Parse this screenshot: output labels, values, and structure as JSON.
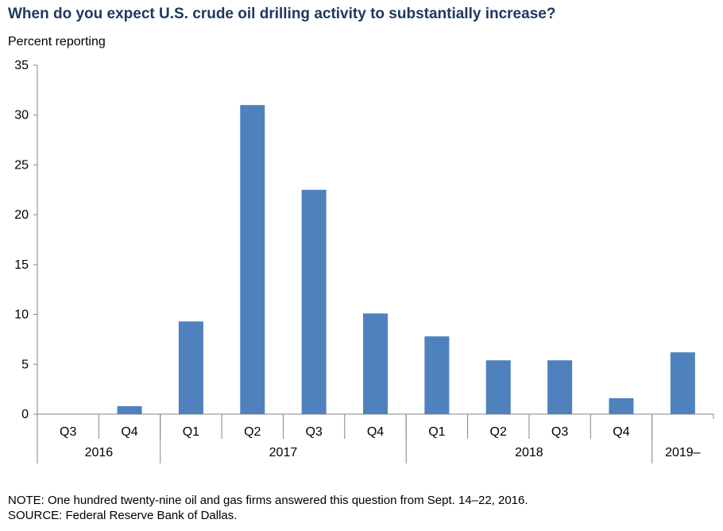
{
  "chart_data": {
    "type": "bar",
    "title": "When do you expect U.S. crude oil drilling activity to substantially increase?",
    "ylabel": "Percent reporting",
    "ylim": [
      0,
      35
    ],
    "yticks": [
      0,
      5,
      10,
      15,
      20,
      25,
      30,
      35
    ],
    "categories": [
      "Q3",
      "Q4",
      "Q1",
      "Q2",
      "Q3",
      "Q4",
      "Q1",
      "Q2",
      "Q3",
      "Q4",
      ""
    ],
    "groups": [
      {
        "label": "2016",
        "span": 2
      },
      {
        "label": "2017",
        "span": 4
      },
      {
        "label": "2018",
        "span": 4
      },
      {
        "label": "2019–",
        "span": 1
      }
    ],
    "values": [
      0,
      0.8,
      9.3,
      31.0,
      22.5,
      10.1,
      7.8,
      5.4,
      5.4,
      1.6,
      6.2
    ],
    "bar_color": "#4f81bd",
    "grid": false
  },
  "footer": {
    "note": "NOTE: One hundred twenty-nine oil and gas firms answered this question from Sept. 14–22, 2016.",
    "source": "SOURCE: Federal Reserve Bank of Dallas."
  }
}
